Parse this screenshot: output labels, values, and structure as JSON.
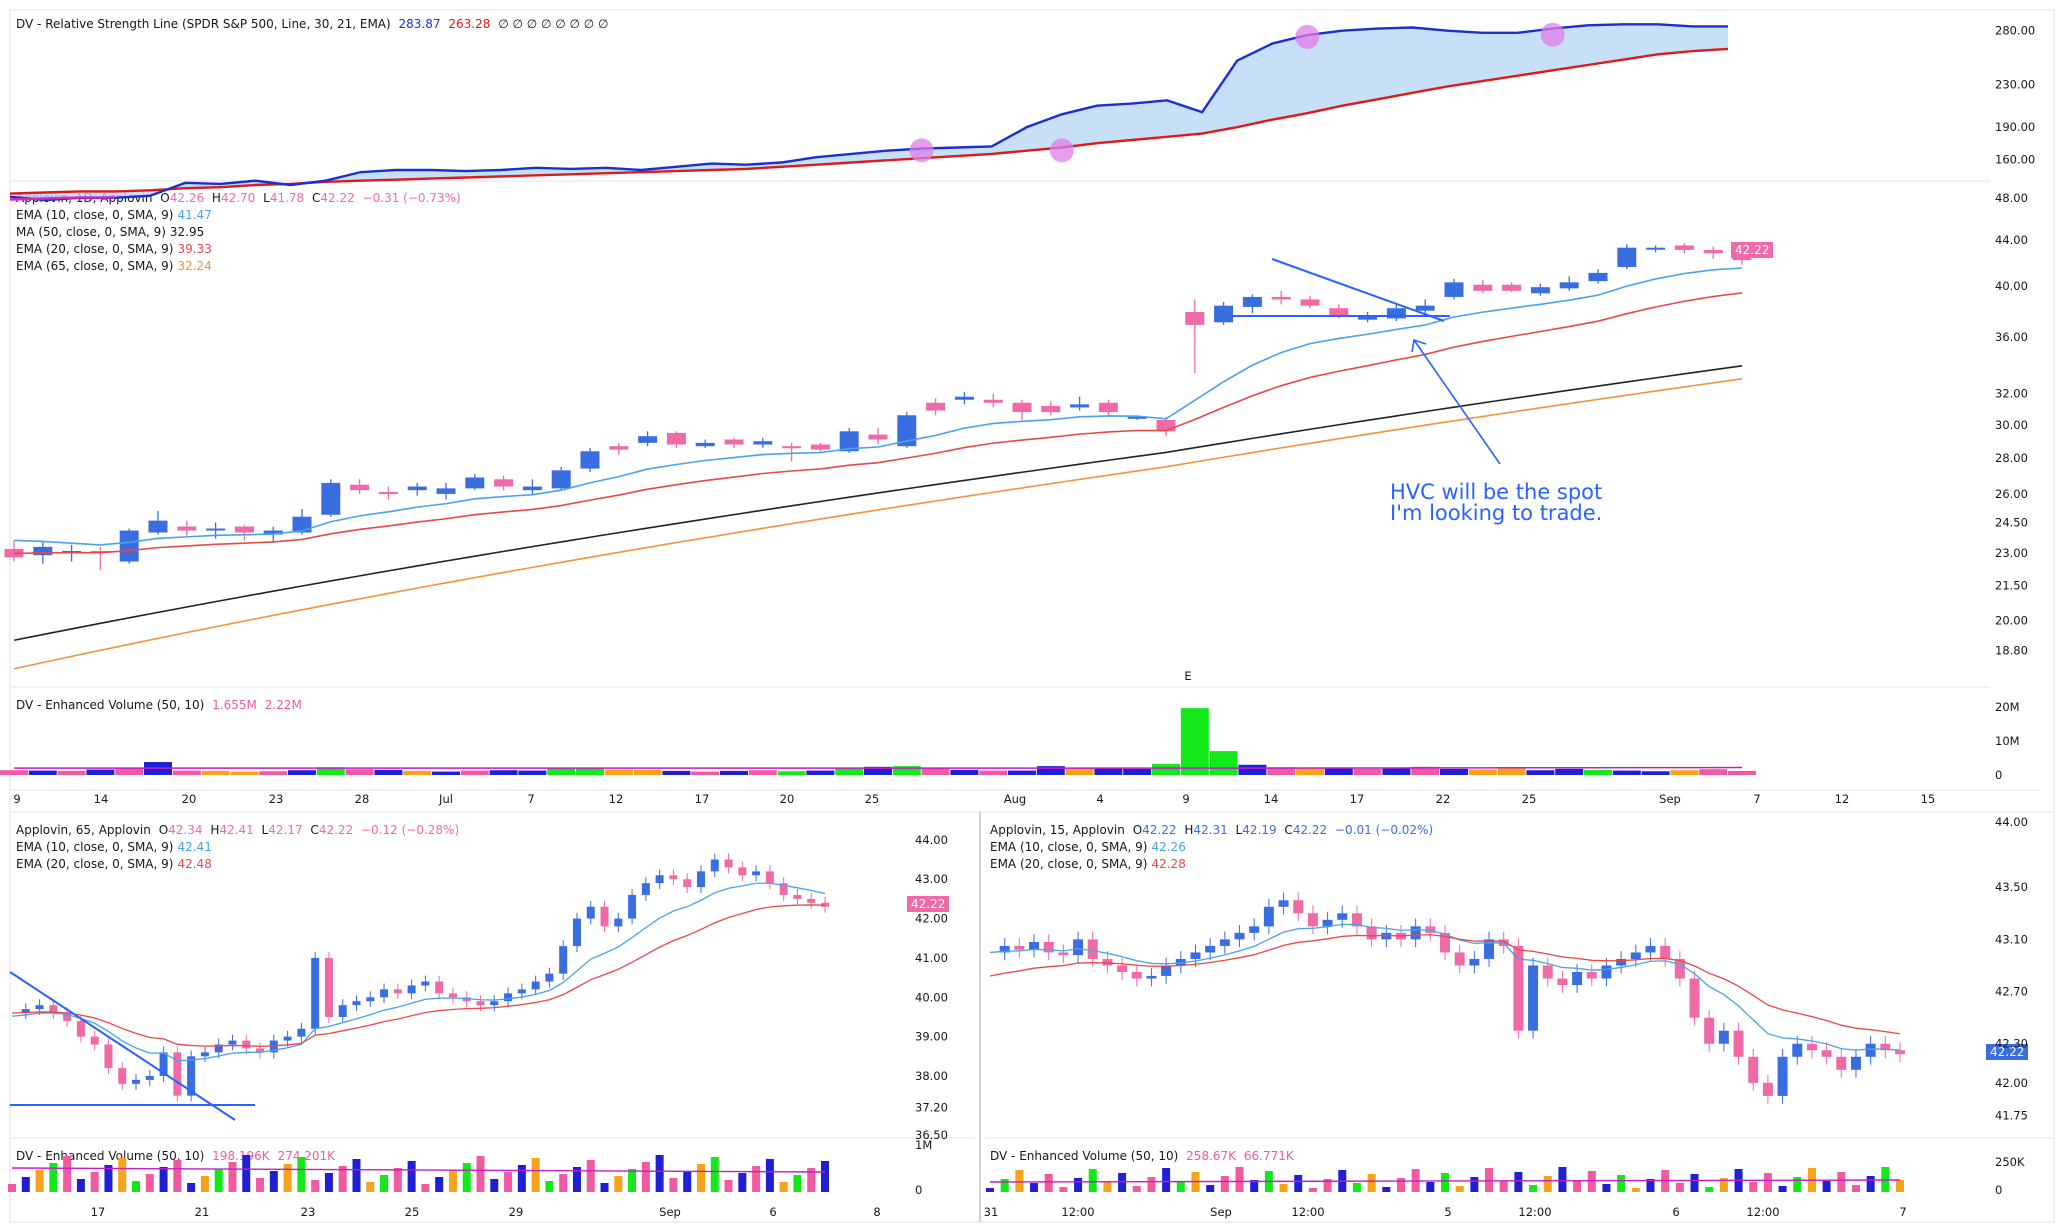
{
  "rs_pane": {
    "title": "DV - Relative Strength Line (SPDR S&P 500, Line, 30, 21, EMA)",
    "v1": "283.87",
    "v2": "263.28",
    "extra": "∅ ∅ ∅ ∅ ∅ ∅ ∅ ∅",
    "ticks": [
      "280.00",
      "230.00",
      "190.00",
      "160.00"
    ]
  },
  "main_pane": {
    "title": "Applovin, 1D, Applovin",
    "o_label": "O",
    "o": "42.26",
    "h_label": "H",
    "h": "42.70",
    "l_label": "L",
    "l": "41.78",
    "c_label": "C",
    "c": "42.22",
    "chg": "−0.31 (−0.73%)",
    "ema10": "EMA (10, close, 0, SMA, 9)",
    "ema10_v": "41.47",
    "ma50": "MA (50, close, 0, SMA, 9)",
    "ma50_v": "32.95",
    "ema20": "EMA (20, close, 0, SMA, 9)",
    "ema20_v": "39.33",
    "ema65": "EMA (65, close, 0, SMA, 9)",
    "ema65_v": "32.24",
    "price_badge": "42.22",
    "earnings_marker": "E",
    "annotation_line1": "HVC will be the spot",
    "annotation_line2": "I'm looking to trade.",
    "ticks": [
      "48.00",
      "44.00",
      "40.00",
      "36.00",
      "32.00",
      "30.00",
      "28.00",
      "26.00",
      "24.50",
      "23.00",
      "21.50",
      "20.00",
      "18.80"
    ]
  },
  "vol_pane": {
    "title": "DV - Enhanced Volume (50, 10)",
    "v1": "1.655M",
    "v2": "2.22M",
    "ticks": [
      "20M",
      "10M",
      "0"
    ]
  },
  "date_axis": {
    "labels": [
      "9",
      "14",
      "20",
      "23",
      "28",
      "Jul",
      "7",
      "12",
      "17",
      "20",
      "25",
      "Aug",
      "4",
      "9",
      "14",
      "17",
      "22",
      "25",
      "Sep",
      "7",
      "12",
      "15"
    ]
  },
  "p65": {
    "title": "Applovin, 65, Applovin",
    "o": "42.34",
    "h": "42.41",
    "l": "42.17",
    "c": "42.22",
    "chg": "−0.12 (−0.28%)",
    "ema10": "EMA (10, close, 0, SMA, 9)",
    "ema10_v": "42.41",
    "ema20": "EMA (20, close, 0, SMA, 9)",
    "ema20_v": "42.48",
    "badge": "42.22",
    "ticks": [
      "44.00",
      "43.00",
      "42.00",
      "41.00",
      "40.00",
      "39.00",
      "38.00",
      "37.20",
      "36.50"
    ],
    "vol_title": "DV - Enhanced Volume (50, 10)",
    "vol_v1": "198.196K",
    "vol_v2": "274.201K",
    "vol_ticks": [
      "1M",
      "0"
    ],
    "dates": [
      "17",
      "21",
      "23",
      "25",
      "29",
      "Sep",
      "6",
      "8"
    ]
  },
  "p15": {
    "title": "Applovin, 15, Applovin",
    "o": "42.22",
    "h": "42.31",
    "l": "42.19",
    "c": "42.22",
    "chg": "−0.01 (−0.02%)",
    "ema10": "EMA (10, close, 0, SMA, 9)",
    "ema10_v": "42.26",
    "ema20": "EMA (20, close, 0, SMA, 9)",
    "ema20_v": "42.28",
    "badge": "42.22",
    "ticks": [
      "44.00",
      "43.50",
      "43.10",
      "42.70",
      "42.30",
      "42.00",
      "41.75"
    ],
    "vol_title": "DV - Enhanced Volume (50, 10)",
    "vol_v1": "258.67K",
    "vol_v2": "66.771K",
    "vol_ticks": [
      "250K",
      "0"
    ],
    "dates": [
      "31",
      "12:00",
      "Sep",
      "12:00",
      "5",
      "12:00",
      "6",
      "12:00",
      "7"
    ]
  },
  "colors": {
    "up": "#3a6ee0",
    "down": "#f06aa8",
    "ema10": "#4aa3e8",
    "ema20": "#e8484a",
    "ma50": "#222222",
    "ema65": "#f0943c",
    "rs": "#1a2fd0",
    "rs_ma": "#e01818",
    "fill": "#b9d7f5",
    "purple": "#e07de8",
    "vol_green": "#12e81a",
    "vol_orange": "#f7a21b",
    "vol_blue": "#1f1fd4",
    "vol_pink": "#f05aa0"
  },
  "chart_data": [
    {
      "type": "line",
      "name": "Relative Strength",
      "series": [
        {
          "name": "RS",
          "values": [
            125,
            122,
            124,
            124,
            126,
            138,
            137,
            140,
            136,
            140,
            148,
            150,
            150,
            149,
            150,
            152,
            151,
            152,
            150,
            153,
            156,
            155,
            157,
            162,
            165,
            168,
            170,
            171,
            172,
            190,
            202,
            210,
            212,
            215,
            204,
            252,
            268,
            276,
            280,
            282,
            283,
            280,
            278,
            278,
            282,
            285,
            286,
            286,
            284,
            284
          ]
        },
        {
          "name": "RS EMA",
          "values": [
            128,
            129,
            130,
            130,
            131,
            133,
            134,
            136,
            137,
            139,
            140,
            141,
            142,
            143,
            144,
            145,
            146,
            147,
            148,
            149,
            150,
            151,
            153,
            155,
            157,
            159,
            161,
            163,
            165,
            168,
            171,
            175,
            178,
            181,
            184,
            190,
            197,
            203,
            210,
            216,
            222,
            228,
            233,
            238,
            243,
            248,
            253,
            258,
            261,
            263
          ]
        }
      ]
    },
    {
      "type": "candlestick",
      "name": "Applovin, 1D"
    },
    {
      "type": "candlestick",
      "name": "Applovin, 65"
    },
    {
      "type": "candlestick",
      "name": "Applovin, 15"
    }
  ]
}
